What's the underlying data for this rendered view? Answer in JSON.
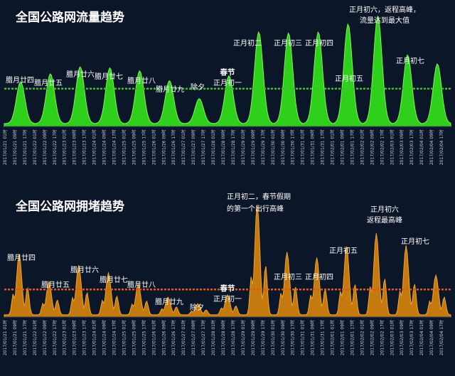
{
  "colors": {
    "background": "#0b1628",
    "traffic_fill": "#2fd01b",
    "traffic_edge": "#7cf35a",
    "traffic_avg": "#34c224",
    "congestion_fill": "#c47a0f",
    "congestion_edge": "#f0a22d",
    "congestion_avg": "#e25a14"
  },
  "chart_data": [
    {
      "type": "area",
      "title": "全国公路网流量趋势",
      "x_dates": [
        "2017/01/21",
        "2017/01/22",
        "2017/01/23",
        "2017/01/24",
        "2017/01/25",
        "2017/01/26",
        "2017/01/27",
        "2017/01/28",
        "2017/01/29",
        "2017/01/30",
        "2017/01/31",
        "2017/02/01",
        "2017/02/02",
        "2017/02/03",
        "2017/02/04"
      ],
      "x_hours": [
        "01时",
        "09时",
        "17时"
      ],
      "daily_peaks": [
        0.42,
        0.5,
        0.57,
        0.56,
        0.53,
        0.43,
        0.25,
        0.48,
        0.92,
        0.91,
        0.92,
        1.0,
        1.08,
        0.69,
        0.6
      ],
      "average_line": 0.38,
      "grid": false,
      "annotations": [
        {
          "day": 0,
          "text": "腊月廿四"
        },
        {
          "day": 1,
          "text": "腊月廿五"
        },
        {
          "day": 2,
          "text": "腊月廿六"
        },
        {
          "day": 3,
          "text": "腊月廿七"
        },
        {
          "day": 4,
          "text": "腊月廿八"
        },
        {
          "day": 5,
          "text": "腊月廿九"
        },
        {
          "day": 6,
          "text": "除夕"
        },
        {
          "day": 7,
          "text": "春节",
          "bold": true
        },
        {
          "day": 7,
          "text": "正月初一"
        },
        {
          "day": 8,
          "text": "正月初二"
        },
        {
          "day": 9,
          "text": "正月初三"
        },
        {
          "day": 10,
          "text": "正月初四"
        },
        {
          "day": 11,
          "text": "正月初五"
        },
        {
          "day": 12,
          "text": "正月初六，返程高峰，"
        },
        {
          "day": 12,
          "text": "流量达到最大值"
        },
        {
          "day": 13,
          "text": "正月初七"
        }
      ]
    },
    {
      "type": "area",
      "title": "全国公路网拥堵趋势",
      "x_dates": [
        "2017/01/21",
        "2017/01/22",
        "2017/01/23",
        "2017/01/24",
        "2017/01/25",
        "2017/01/26",
        "2017/01/27",
        "2017/01/28",
        "2017/01/29",
        "2017/01/30",
        "2017/01/31",
        "2017/02/01",
        "2017/02/02",
        "2017/02/03",
        "2017/02/04"
      ],
      "x_hours": [
        "01时",
        "09时",
        "17时"
      ],
      "daily_peaks": [
        0.55,
        0.3,
        0.45,
        0.38,
        0.28,
        0.16,
        0.1,
        0.18,
        1.0,
        0.57,
        0.52,
        0.62,
        0.74,
        0.63,
        0.36
      ],
      "average_line": 0.25,
      "grid": false,
      "annotations": [
        {
          "day": 0,
          "text": "腊月廿四"
        },
        {
          "day": 1,
          "text": "腊月廿五"
        },
        {
          "day": 2,
          "text": "腊月廿六"
        },
        {
          "day": 3,
          "text": "腊月廿七"
        },
        {
          "day": 4,
          "text": "腊月廿八"
        },
        {
          "day": 5,
          "text": "腊月廿九"
        },
        {
          "day": 6,
          "text": "除夕"
        },
        {
          "day": 7,
          "text": "春节",
          "bold": true
        },
        {
          "day": 7,
          "text": "正月初一"
        },
        {
          "day": 8,
          "text": "正月初二，春节假期"
        },
        {
          "day": 8,
          "text": "的第一个出行高峰"
        },
        {
          "day": 9,
          "text": "正月初三"
        },
        {
          "day": 10,
          "text": "正月初四"
        },
        {
          "day": 11,
          "text": "正月初五"
        },
        {
          "day": 12,
          "text": "正月初六"
        },
        {
          "day": 12,
          "text": "返程最高峰"
        },
        {
          "day": 13,
          "text": "正月初七"
        }
      ]
    }
  ]
}
